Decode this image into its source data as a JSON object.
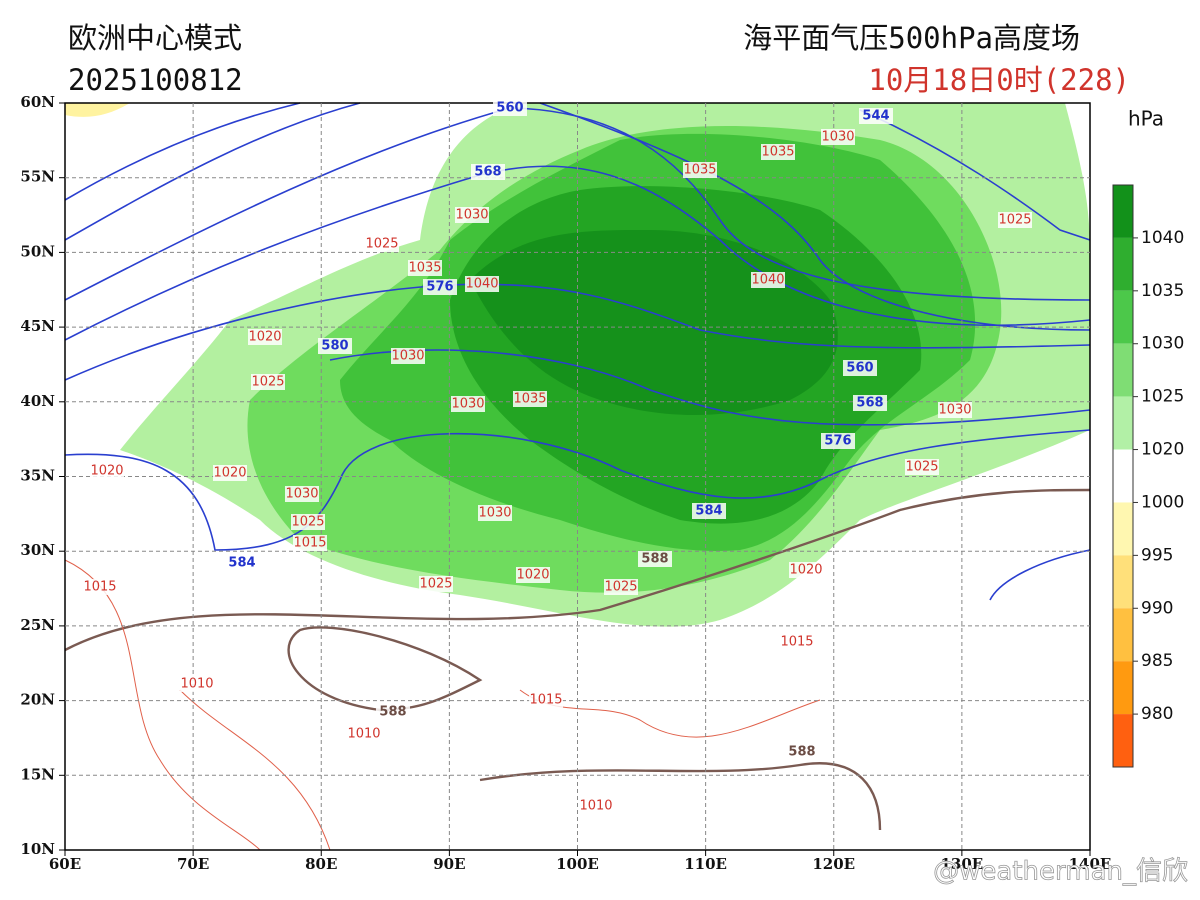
{
  "header": {
    "model": "欧洲中心模式",
    "init_time": "2025100812",
    "title": "海平面气压500hPa高度场",
    "valid_time": "10月18日0时(228)"
  },
  "map": {
    "lat_ticks": [
      "60N",
      "55N",
      "50N",
      "45N",
      "40N",
      "35N",
      "30N",
      "25N",
      "20N",
      "15N",
      "10N"
    ],
    "lon_ticks": [
      "60E",
      "70E",
      "80E",
      "90E",
      "100E",
      "110E",
      "120E",
      "130E",
      "140E"
    ]
  },
  "colorbar": {
    "unit": "hPa",
    "labels": [
      "1040",
      "1035",
      "1030",
      "1025",
      "1020",
      "1000",
      "995",
      "990",
      "985",
      "980"
    ]
  },
  "contour_labels": {
    "pressure": [
      "1035",
      "1035",
      "1030",
      "1030",
      "1025",
      "1035",
      "1040",
      "1040",
      "1025",
      "1020",
      "1030",
      "1025",
      "1030",
      "1035",
      "1030",
      "1020",
      "1020",
      "1030",
      "1025",
      "1030",
      "1025",
      "1015",
      "1020",
      "1025",
      "1025",
      "1015",
      "1020",
      "1015",
      "1010",
      "1015",
      "1010",
      "1010"
    ],
    "height": [
      "560",
      "544",
      "568",
      "576",
      "580",
      "560",
      "568",
      "576",
      "584",
      "584"
    ],
    "ridge": [
      "588",
      "588",
      "588"
    ]
  },
  "watermark": "@weatherman_信欣"
}
